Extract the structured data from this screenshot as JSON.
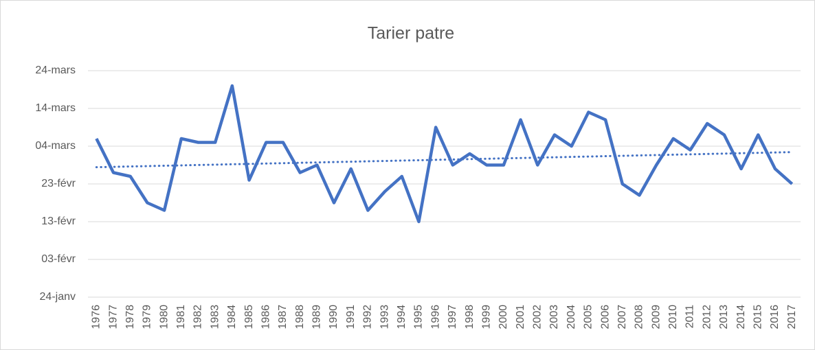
{
  "chart_data": {
    "type": "line",
    "title": "Tarier patre",
    "categories": [
      "1976",
      "1977",
      "1978",
      "1979",
      "1980",
      "1981",
      "1982",
      "1983",
      "1984",
      "1985",
      "1986",
      "1987",
      "1988",
      "1989",
      "1990",
      "1991",
      "1992",
      "1993",
      "1994",
      "1995",
      "1996",
      "1997",
      "1998",
      "1999",
      "2000",
      "2001",
      "2002",
      "2003",
      "2004",
      "2005",
      "2006",
      "2007",
      "2008",
      "2009",
      "2010",
      "2011",
      "2012",
      "2013",
      "2014",
      "2015",
      "2016",
      "2017"
    ],
    "series": [
      {
        "color": "#4472c4",
        "values": [
          66,
          57,
          56,
          49,
          47,
          66,
          65,
          65,
          80,
          55,
          65,
          65,
          57,
          59,
          49,
          58,
          47,
          52,
          56,
          44,
          69,
          59,
          62,
          59,
          59,
          71,
          59,
          67,
          64,
          73,
          71,
          54,
          51,
          59,
          66,
          63,
          70,
          67,
          58,
          67,
          58,
          54
        ]
      }
    ],
    "trendline": true,
    "ylim": [
      24,
      84
    ],
    "yticks": [
      {
        "value": 24,
        "label": "24-janv"
      },
      {
        "value": 34,
        "label": "03-févr"
      },
      {
        "value": 44,
        "label": "13-févr"
      },
      {
        "value": 54,
        "label": "23-févr"
      },
      {
        "value": 64,
        "label": "04-mars"
      },
      {
        "value": 74,
        "label": "14-mars"
      },
      {
        "value": 84,
        "label": "24-mars"
      }
    ],
    "grid": true
  }
}
